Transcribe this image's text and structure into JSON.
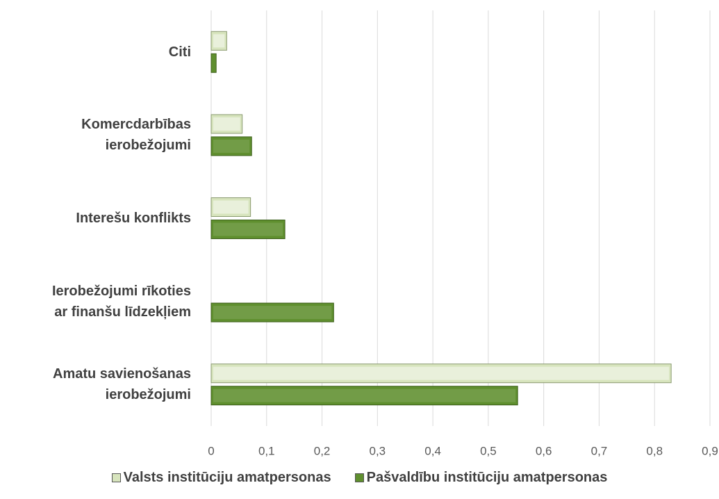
{
  "chart_data": {
    "type": "hbar",
    "categories": [
      "Citi",
      "Komercdarbības\nierobežojumi",
      "Interešu konflikts",
      "Ierobežojumi rīkoties\nar finanšu līdzekļiem",
      "Amatu savienošanas\nierobežojumi"
    ],
    "series": [
      {
        "name": "Valsts institūciju amatpersonas",
        "color": "#d7e4bd",
        "values": [
          0.028,
          0.056,
          0.071,
          0,
          0.83
        ]
      },
      {
        "name": "Pašvaldību institūciju amatpersonas",
        "color": "#5f8f2e",
        "values": [
          0.009,
          0.073,
          0.133,
          0.221,
          0.553
        ]
      }
    ],
    "xlim": [
      0,
      0.9
    ],
    "xticks": [
      0,
      {
        "value": 0.1,
        "label": "0,1"
      },
      {
        "value": 0.2,
        "label": "0,2"
      },
      {
        "value": 0.3,
        "label": "0,3"
      },
      {
        "value": 0.4,
        "label": "0,4"
      },
      {
        "value": 0.5,
        "label": "0,5"
      },
      {
        "value": 0.6,
        "label": "0,6"
      },
      {
        "value": 0.7,
        "label": "0,7"
      },
      {
        "value": 0.8,
        "label": "0,8"
      },
      {
        "value": 0.9,
        "label": "0,9"
      }
    ],
    "grid": true,
    "legend": "bottom"
  }
}
